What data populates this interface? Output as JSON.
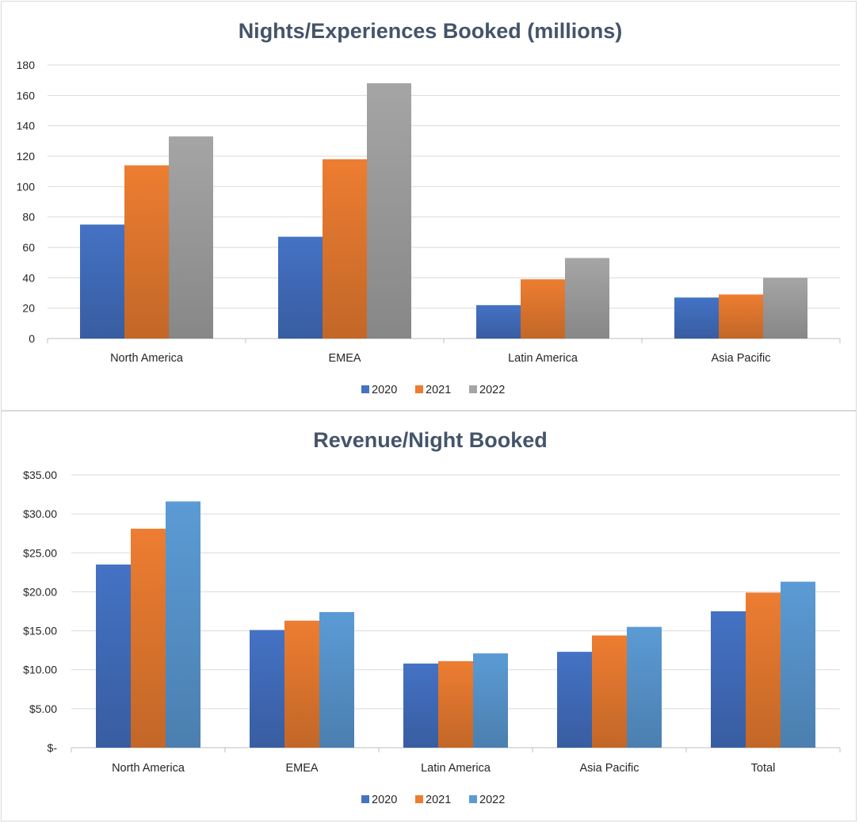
{
  "colors": {
    "2020": "#4472c4",
    "2021": "#ed7d31",
    "2022_gray": "#a5a5a5",
    "2022_blue": "#5b9bd5",
    "title": "#44546a",
    "grid": "#d9d9d9"
  },
  "chart_data": [
    {
      "type": "bar",
      "title": "Nights/Experiences Booked (millions)",
      "categories": [
        "North America",
        "EMEA",
        "Latin America",
        "Asia Pacific"
      ],
      "series": [
        {
          "name": "2020",
          "values": [
            75,
            67,
            22,
            27
          ],
          "color": "#4472c4"
        },
        {
          "name": "2021",
          "values": [
            114,
            118,
            39,
            29
          ],
          "color": "#ed7d31"
        },
        {
          "name": "2022",
          "values": [
            133,
            168,
            53,
            40
          ],
          "color": "#a5a5a5"
        }
      ],
      "ylim": [
        0,
        180
      ],
      "yticks": [
        0,
        20,
        40,
        60,
        80,
        100,
        120,
        140,
        160,
        180
      ],
      "ytick_labels": [
        "0",
        "20",
        "40",
        "60",
        "80",
        "100",
        "120",
        "140",
        "160",
        "180"
      ],
      "grid": true,
      "legend": "bottom"
    },
    {
      "type": "bar",
      "title": "Revenue/Night Booked",
      "categories": [
        "North America",
        "EMEA",
        "Latin America",
        "Asia Pacific",
        "Total"
      ],
      "series": [
        {
          "name": "2020",
          "values": [
            23.5,
            15.1,
            10.8,
            12.3,
            17.5
          ],
          "color": "#4472c4"
        },
        {
          "name": "2021",
          "values": [
            28.1,
            16.3,
            11.1,
            14.4,
            19.9
          ],
          "color": "#ed7d31"
        },
        {
          "name": "2022",
          "values": [
            31.6,
            17.4,
            12.1,
            15.5,
            21.3
          ],
          "color": "#5b9bd5"
        }
      ],
      "ylim": [
        0,
        35
      ],
      "yticks": [
        0,
        5,
        10,
        15,
        20,
        25,
        30,
        35
      ],
      "ytick_labels": [
        "$-",
        "$5.00",
        "$10.00",
        "$15.00",
        "$20.00",
        "$25.00",
        "$30.00",
        "$35.00"
      ],
      "grid": true,
      "legend": "bottom"
    }
  ]
}
